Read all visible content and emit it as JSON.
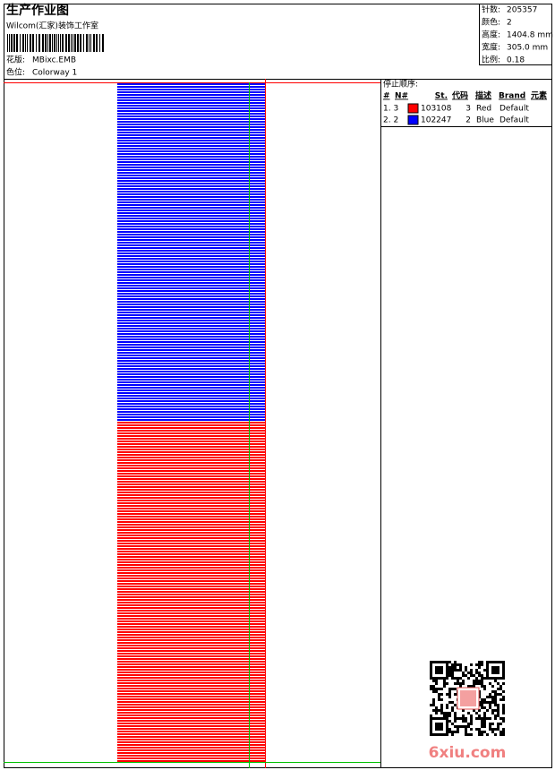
{
  "header": {
    "title": "生产作业图",
    "subtitle": "Wilcom(汇家)装饰工作室",
    "design_label": "花版:",
    "design": "MBixc.EMB",
    "colorway_label": "色位:",
    "colorway": "Colorway 1"
  },
  "info": [
    {
      "label": "针数:",
      "value": "205357"
    },
    {
      "label": "颜色:",
      "value": "2"
    },
    {
      "label": "高度:",
      "value": "1404.8 mm"
    },
    {
      "label": "宽度:",
      "value": "305.0 mm"
    },
    {
      "label": "比例:",
      "value": "0.18"
    }
  ],
  "stop_sequence": {
    "title": "停止顺序:",
    "columns": [
      "#",
      "N#",
      "St.",
      "代码",
      "描述",
      "Brand",
      "元素"
    ],
    "rows": [
      {
        "index": "1. 3",
        "swatch": "#ff0000",
        "code": "103108",
        "number": "3",
        "name": "Red",
        "brand": "Default"
      },
      {
        "index": "2. 2",
        "swatch": "#0000ff",
        "code": "102247",
        "number": "2",
        "name": "Blue",
        "brand": "Default"
      }
    ]
  },
  "design_colors": [
    "#0000ff",
    "#ff0000"
  ],
  "watermark": "6xiu.com"
}
